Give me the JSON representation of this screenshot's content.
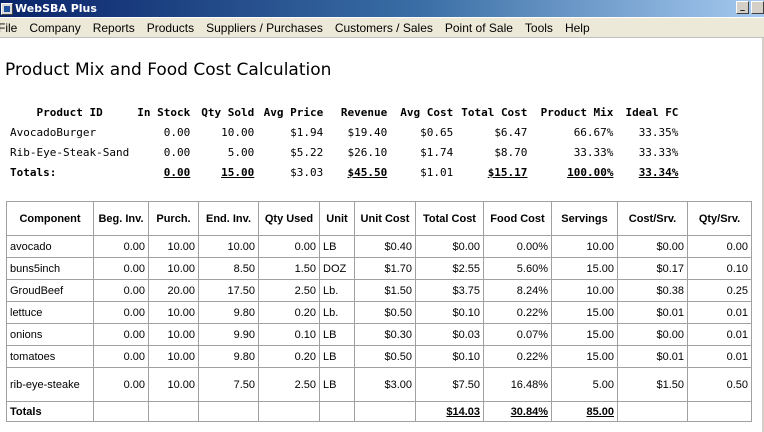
{
  "window": {
    "title": "WebSBA Plus",
    "minimize_label": "_"
  },
  "menu": [
    "File",
    "Company",
    "Reports",
    "Products",
    "Suppliers / Purchases",
    "Customers / Sales",
    "Point of Sale",
    "Tools",
    "Help"
  ],
  "page": {
    "title": "Product Mix and Food Cost Calculation"
  },
  "summary": {
    "headers": [
      "Product ID",
      "In Stock",
      "Qty Sold",
      "Avg Price",
      "Revenue",
      "Avg Cost",
      "Total Cost",
      "Product Mix",
      "Ideal FC"
    ],
    "rows": [
      [
        "AvocadoBurger",
        "0.00",
        "10.00",
        "$1.94",
        "$19.40",
        "$0.65",
        "$6.47",
        "66.67%",
        "33.35%"
      ],
      [
        "Rib-Eye-Steak-Sand",
        "0.00",
        "5.00",
        "$5.22",
        "$26.10",
        "$1.74",
        "$8.70",
        "33.33%",
        "33.33%"
      ]
    ],
    "totals": [
      "Totals:",
      "0.00",
      "15.00",
      "$3.03",
      "$45.50",
      "$1.01",
      "$15.17",
      "100.00%",
      "33.34%"
    ]
  },
  "detail": {
    "headers": [
      "Component",
      "Beg. Inv.",
      "Purch.",
      "End. Inv.",
      "Qty Used",
      "Unit",
      "Unit Cost",
      "Total Cost",
      "Food Cost",
      "Servings",
      "Cost/Srv.",
      "Qty/Srv."
    ],
    "rows": [
      [
        "avocado",
        "0.00",
        "10.00",
        "10.00",
        "0.00",
        "LB",
        "$0.40",
        "$0.00",
        "0.00%",
        "10.00",
        "$0.00",
        "0.00"
      ],
      [
        "buns5inch",
        "0.00",
        "10.00",
        "8.50",
        "1.50",
        "DOZ",
        "$1.70",
        "$2.55",
        "5.60%",
        "15.00",
        "$0.17",
        "0.10"
      ],
      [
        "GroudBeef",
        "0.00",
        "20.00",
        "17.50",
        "2.50",
        "Lb.",
        "$1.50",
        "$3.75",
        "8.24%",
        "10.00",
        "$0.38",
        "0.25"
      ],
      [
        "lettuce",
        "0.00",
        "10.00",
        "9.80",
        "0.20",
        "Lb.",
        "$0.50",
        "$0.10",
        "0.22%",
        "15.00",
        "$0.01",
        "0.01"
      ],
      [
        "onions",
        "0.00",
        "10.00",
        "9.90",
        "0.10",
        "LB",
        "$0.30",
        "$0.03",
        "0.07%",
        "15.00",
        "$0.00",
        "0.01"
      ],
      [
        "tomatoes",
        "0.00",
        "10.00",
        "9.80",
        "0.20",
        "LB",
        "$0.50",
        "$0.10",
        "0.22%",
        "15.00",
        "$0.01",
        "0.01"
      ],
      [
        "rib-eye-steake",
        "0.00",
        "10.00",
        "7.50",
        "2.50",
        "LB",
        "$3.00",
        "$7.50",
        "16.48%",
        "5.00",
        "$1.50",
        "0.50"
      ]
    ],
    "totals": {
      "label": "Totals",
      "total_cost": "$14.03",
      "food_cost": "30.84%",
      "servings": "85.00"
    }
  }
}
